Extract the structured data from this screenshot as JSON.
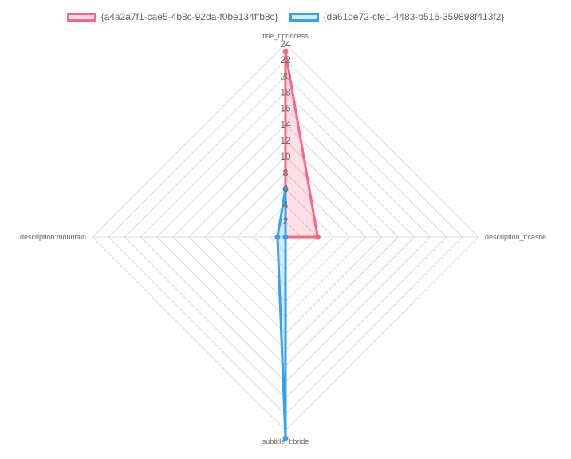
{
  "chart_data": {
    "type": "radar",
    "labels": [
      "title_t:princess",
      "description_t:castle",
      "subtitle_t:bride",
      "description:mountain"
    ],
    "r_ticks": [
      "2",
      "4",
      "6",
      "8",
      "10",
      "12",
      "14",
      "16",
      "18",
      "20",
      "22",
      "24"
    ],
    "r_range": [
      0,
      24
    ],
    "grid": true,
    "legend_position": "top",
    "series": [
      {
        "name": "{a4a2a7f1-cae5-4b8c-92da-f0be134ffb8c}",
        "values": [
          23,
          4,
          0,
          0
        ],
        "border_color": "#ff6384",
        "fill_color": "rgba(255,99,132,0.2)"
      },
      {
        "name": "{da61de72-cfe1-4483-b516-359898f413f2}",
        "values": [
          6,
          0,
          25,
          1
        ],
        "border_color": "#36a2eb",
        "fill_color": "rgba(54,162,235,0.2)"
      }
    ]
  }
}
